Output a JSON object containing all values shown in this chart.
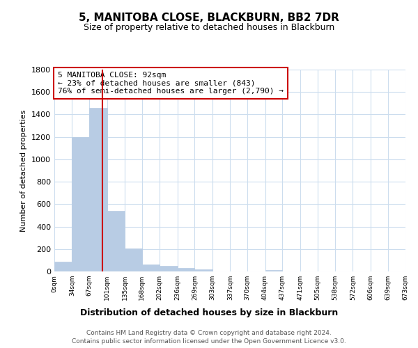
{
  "title": "5, MANITOBA CLOSE, BLACKBURN, BB2 7DR",
  "subtitle": "Size of property relative to detached houses in Blackburn",
  "xlabel": "Distribution of detached houses by size in Blackburn",
  "ylabel": "Number of detached properties",
  "bin_edges": [
    0,
    34,
    67,
    101,
    135,
    168,
    202,
    236,
    269,
    303,
    337,
    370,
    404,
    437,
    471,
    505,
    538,
    572,
    606,
    639,
    673
  ],
  "bar_heights": [
    90,
    1200,
    1460,
    540,
    205,
    65,
    48,
    30,
    20,
    0,
    0,
    0,
    10,
    0,
    0,
    0,
    0,
    0,
    0,
    0
  ],
  "bar_color": "#b8cce4",
  "bar_edge_color": "#b8cce4",
  "property_line_x": 92,
  "property_line_color": "#cc0000",
  "annotation_line1": "5 MANITOBA CLOSE: 92sqm",
  "annotation_line2": "← 23% of detached houses are smaller (843)",
  "annotation_line3": "76% of semi-detached houses are larger (2,790) →",
  "tick_labels": [
    "0sqm",
    "34sqm",
    "67sqm",
    "101sqm",
    "135sqm",
    "168sqm",
    "202sqm",
    "236sqm",
    "269sqm",
    "303sqm",
    "337sqm",
    "370sqm",
    "404sqm",
    "437sqm",
    "471sqm",
    "505sqm",
    "538sqm",
    "572sqm",
    "606sqm",
    "639sqm",
    "673sqm"
  ],
  "ylim": [
    0,
    1800
  ],
  "yticks": [
    0,
    200,
    400,
    600,
    800,
    1000,
    1200,
    1400,
    1600,
    1800
  ],
  "background_color": "#ffffff",
  "grid_color": "#ccddee",
  "footer_line1": "Contains HM Land Registry data © Crown copyright and database right 2024.",
  "footer_line2": "Contains public sector information licensed under the Open Government Licence v3.0."
}
